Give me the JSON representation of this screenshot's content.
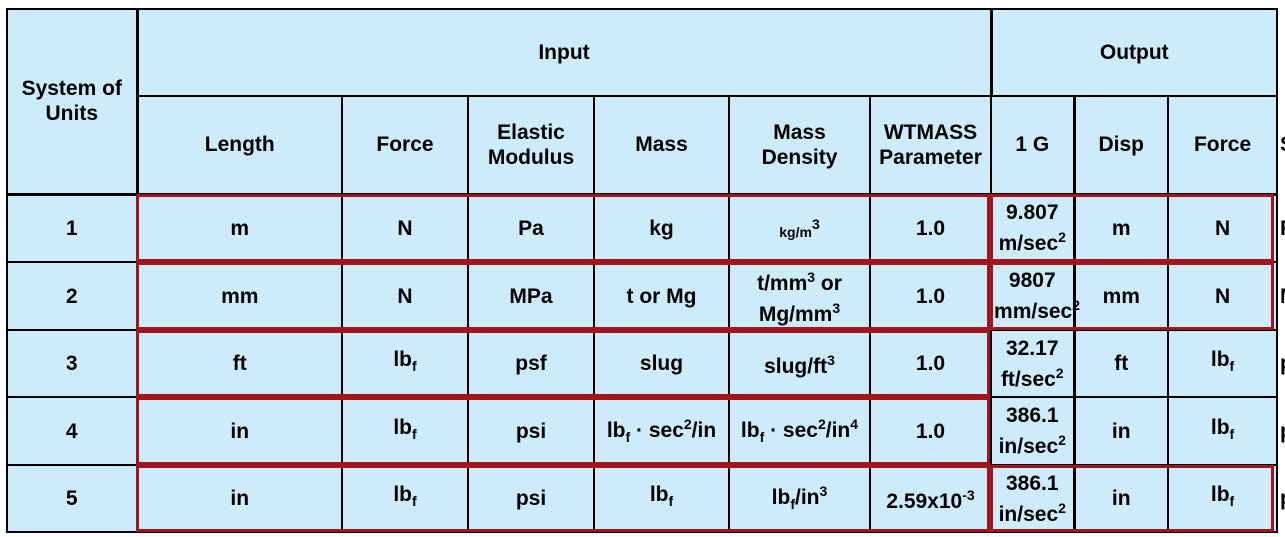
{
  "header": {
    "system": [
      "System of",
      "Units"
    ],
    "input": "Input",
    "output": "Output",
    "columns": [
      [
        "Length"
      ],
      [
        "Force"
      ],
      [
        "Elastic",
        "Modulus"
      ],
      [
        "Mass"
      ],
      [
        "Mass",
        "Density"
      ],
      [
        "WTMASS",
        "Parameter"
      ],
      [
        "1 G"
      ],
      [
        "Disp"
      ],
      [
        "Force"
      ],
      [
        "Stress"
      ]
    ]
  },
  "rows": [
    {
      "system": "1",
      "cells": [
        [
          [
            [
              "m",
              ""
            ]
          ]
        ],
        [
          [
            [
              "N",
              ""
            ]
          ]
        ],
        [
          [
            [
              "Pa",
              ""
            ]
          ]
        ],
        [
          [
            [
              "kg",
              ""
            ]
          ]
        ],
        [
          [
            [
              "kg/m",
              "sup"
            ],
            [
              "3",
              "sup"
            ]
          ]
        ],
        [
          [
            [
              "1.0",
              ""
            ]
          ]
        ],
        [
          [
            [
              "9.807",
              ""
            ]
          ],
          [
            [
              "m/sec",
              ""
            ],
            [
              "2",
              "sup"
            ]
          ]
        ],
        [
          [
            [
              "m",
              ""
            ]
          ]
        ],
        [
          [
            [
              "N",
              ""
            ]
          ]
        ],
        [
          [
            [
              "Pa",
              ""
            ]
          ]
        ]
      ]
    },
    {
      "system": "2",
      "cells": [
        [
          [
            [
              "mm",
              ""
            ]
          ]
        ],
        [
          [
            [
              "N",
              ""
            ]
          ]
        ],
        [
          [
            [
              "MPa",
              ""
            ]
          ]
        ],
        [
          [
            [
              "t or Mg",
              ""
            ]
          ]
        ],
        [
          [
            [
              "t/mm",
              ""
            ],
            [
              "3",
              "sup"
            ],
            [
              " or",
              ""
            ]
          ],
          [
            [
              "Mg/mm",
              ""
            ],
            [
              "3",
              "sup"
            ]
          ]
        ],
        [
          [
            [
              "1.0",
              ""
            ]
          ]
        ],
        [
          [
            [
              "9807",
              ""
            ]
          ],
          [
            [
              "mm/sec",
              ""
            ],
            [
              "2",
              "sup"
            ]
          ]
        ],
        [
          [
            [
              "mm",
              ""
            ]
          ]
        ],
        [
          [
            [
              "N",
              ""
            ]
          ]
        ],
        [
          [
            [
              "MPa",
              ""
            ]
          ]
        ]
      ]
    },
    {
      "system": "3",
      "cells": [
        [
          [
            [
              "ft",
              ""
            ]
          ]
        ],
        [
          [
            [
              "lb",
              ""
            ],
            [
              "f",
              "sub"
            ]
          ]
        ],
        [
          [
            [
              "psf",
              ""
            ]
          ]
        ],
        [
          [
            [
              "slug",
              ""
            ]
          ]
        ],
        [
          [
            [
              "slug/ft",
              ""
            ],
            [
              "3",
              "sup"
            ]
          ]
        ],
        [
          [
            [
              "1.0",
              ""
            ]
          ]
        ],
        [
          [
            [
              "32.17",
              ""
            ]
          ],
          [
            [
              "ft/sec",
              ""
            ],
            [
              "2",
              "sup"
            ]
          ]
        ],
        [
          [
            [
              "ft",
              ""
            ]
          ]
        ],
        [
          [
            [
              "lb",
              ""
            ],
            [
              "f",
              "sub"
            ]
          ]
        ],
        [
          [
            [
              "psf",
              ""
            ]
          ]
        ]
      ]
    },
    {
      "system": "4",
      "cells": [
        [
          [
            [
              "in",
              ""
            ]
          ]
        ],
        [
          [
            [
              "lb",
              ""
            ],
            [
              "f",
              "sub"
            ]
          ]
        ],
        [
          [
            [
              "psi",
              ""
            ]
          ]
        ],
        [
          [
            [
              "lb",
              ""
            ],
            [
              "f",
              "sub"
            ],
            [
              " · sec",
              ""
            ],
            [
              "2",
              "sup"
            ],
            [
              "/in",
              ""
            ]
          ]
        ],
        [
          [
            [
              "lb",
              ""
            ],
            [
              "f",
              "sub"
            ],
            [
              " · sec",
              ""
            ],
            [
              "2",
              "sup"
            ],
            [
              "/in",
              ""
            ],
            [
              "4",
              "sup"
            ]
          ]
        ],
        [
          [
            [
              "1.0",
              ""
            ]
          ]
        ],
        [
          [
            [
              "386.1",
              ""
            ]
          ],
          [
            [
              "in/sec",
              ""
            ],
            [
              "2",
              "sup"
            ]
          ]
        ],
        [
          [
            [
              "in",
              ""
            ]
          ]
        ],
        [
          [
            [
              "lb",
              ""
            ],
            [
              "f",
              "sub"
            ]
          ]
        ],
        [
          [
            [
              "psi",
              ""
            ]
          ]
        ]
      ]
    },
    {
      "system": "5",
      "cells": [
        [
          [
            [
              "in",
              ""
            ]
          ]
        ],
        [
          [
            [
              "lb",
              ""
            ],
            [
              "f",
              "sub"
            ]
          ]
        ],
        [
          [
            [
              "psi",
              ""
            ]
          ]
        ],
        [
          [
            [
              "lb",
              ""
            ],
            [
              "f",
              "sub"
            ]
          ]
        ],
        [
          [
            [
              "lb",
              ""
            ],
            [
              "f",
              "sub"
            ],
            [
              "/in",
              ""
            ],
            [
              "3",
              "sup"
            ]
          ]
        ],
        [
          [
            [
              "2.59x10",
              ""
            ],
            [
              "-3",
              "sup"
            ]
          ]
        ],
        [
          [
            [
              "386.1",
              ""
            ]
          ],
          [
            [
              "in/sec",
              ""
            ],
            [
              "2",
              "sup"
            ]
          ]
        ],
        [
          [
            [
              "in",
              ""
            ]
          ]
        ],
        [
          [
            [
              "lb",
              ""
            ],
            [
              "f",
              "sub"
            ]
          ]
        ],
        [
          [
            [
              "psi",
              ""
            ]
          ]
        ]
      ]
    }
  ],
  "colors": {
    "cell_background": "#cdebfa",
    "grid_line": "#000000",
    "highlight_outline": "#a3151c"
  }
}
